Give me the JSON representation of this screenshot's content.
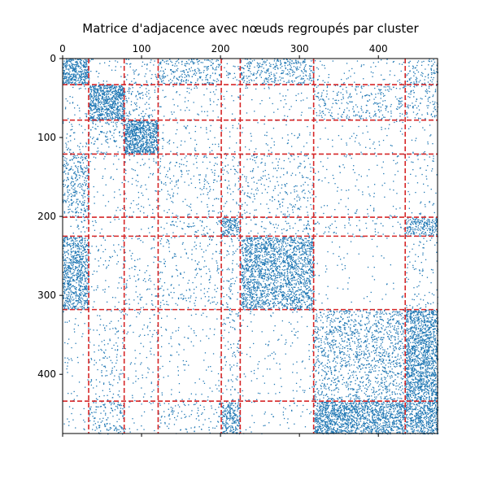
{
  "chart_data": {
    "type": "heatmap",
    "subtype": "sparse-adjacency-matrix (spy plot)",
    "title": "Matrice d'adjacence avec nœuds regroupés par cluster",
    "n_nodes": 475,
    "x_axis_position": "top",
    "xlim": [
      0,
      475
    ],
    "ylim": [
      475,
      0
    ],
    "x_ticks": [
      0,
      100,
      200,
      300,
      400
    ],
    "y_ticks": [
      0,
      100,
      200,
      300,
      400
    ],
    "x_tick_labels": [
      "0",
      "100",
      "200",
      "300",
      "400"
    ],
    "y_tick_labels": [
      "0",
      "100",
      "200",
      "300",
      "400"
    ],
    "cluster_boundaries": [
      33,
      78,
      121,
      201,
      225,
      318,
      434
    ],
    "grid": false,
    "point_color": "#1f77b4",
    "boundary_color": "#d62728",
    "block_density": [
      [
        0.65,
        0.03,
        0.06,
        0.18,
        0.05,
        0.2,
        0.03,
        0.14
      ],
      [
        0.03,
        0.7,
        0.1,
        0.03,
        0.02,
        0.02,
        0.1,
        0.1
      ],
      [
        0.06,
        0.1,
        0.75,
        0.03,
        0.02,
        0.02,
        0.02,
        0.02
      ],
      [
        0.22,
        0.02,
        0.04,
        0.05,
        0.06,
        0.06,
        0.02,
        0.03
      ],
      [
        0.04,
        0.02,
        0.02,
        0.06,
        0.5,
        0.06,
        0.04,
        0.4
      ],
      [
        0.45,
        0.03,
        0.04,
        0.05,
        0.06,
        0.42,
        0.01,
        0.04
      ],
      [
        0.02,
        0.05,
        0.03,
        0.02,
        0.06,
        0.02,
        0.18,
        0.55
      ],
      [
        0.02,
        0.14,
        0.02,
        0.06,
        0.42,
        0.02,
        0.55,
        0.55
      ]
    ]
  }
}
